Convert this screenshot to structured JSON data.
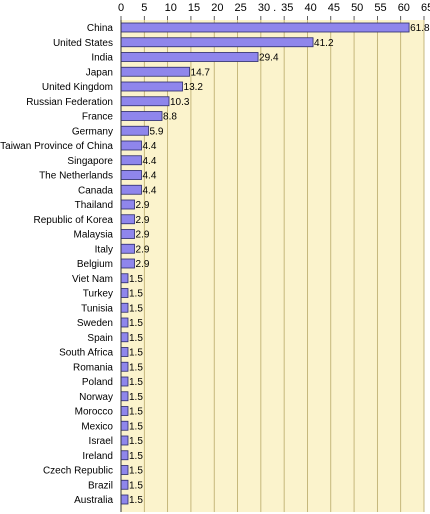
{
  "chart_data": {
    "type": "bar",
    "orientation": "horizontal",
    "title": "",
    "xlabel": "",
    "ylabel": "",
    "xlim": [
      0,
      65
    ],
    "xticks": [
      "0",
      "5",
      "10",
      "15",
      "20",
      "25",
      "30 .",
      "35",
      "40",
      "45",
      "50",
      "55",
      "60",
      "65"
    ],
    "axis_position": "top",
    "grid": true,
    "categories": [
      "China",
      "United States",
      "India",
      "Japan",
      "United Kingdom",
      "Russian Federation",
      "France",
      "Germany",
      "Taiwan Province of China",
      "Singapore",
      "The Netherlands",
      "Canada",
      "Thailand",
      "Republic of Korea",
      "Malaysia",
      "Italy",
      "Belgium",
      "Viet Nam",
      "Turkey",
      "Tunisia",
      "Sweden",
      "Spain",
      "South Africa",
      "Romania",
      "Poland",
      "Norway",
      "Morocco",
      "Mexico",
      "Israel",
      "Ireland",
      "Czech Republic",
      "Brazil",
      "Australia"
    ],
    "values": [
      61.8,
      41.2,
      29.4,
      14.7,
      13.2,
      10.3,
      8.8,
      5.9,
      4.4,
      4.4,
      4.4,
      4.4,
      2.9,
      2.9,
      2.9,
      2.9,
      2.9,
      1.5,
      1.5,
      1.5,
      1.5,
      1.5,
      1.5,
      1.5,
      1.5,
      1.5,
      1.5,
      1.5,
      1.5,
      1.5,
      1.5,
      1.5,
      1.5
    ],
    "value_labels": [
      "61.8",
      "41.2",
      "29.4",
      "14.7",
      "13.2",
      "10.3",
      "8.8",
      "5.9",
      "4.4",
      "4.4",
      "4.4",
      "4.4",
      "2.9",
      "2.9",
      "2.9",
      "2.9",
      "2.9",
      "1.5",
      "1.5",
      "1.5",
      "1.5",
      "1.5",
      "1.5",
      "1.5",
      "1.5",
      "1.5",
      "1.5",
      "1.5",
      "1.5",
      "1.5",
      "1.5",
      "1.5",
      "1.5"
    ],
    "colors": {
      "bar_fill": "#8f86ec",
      "bar_stroke": "#2a2a6a",
      "plot_background": "#fbf3cc",
      "gridline": "#b8a868",
      "axis": "#333333",
      "text": "#000000"
    }
  }
}
